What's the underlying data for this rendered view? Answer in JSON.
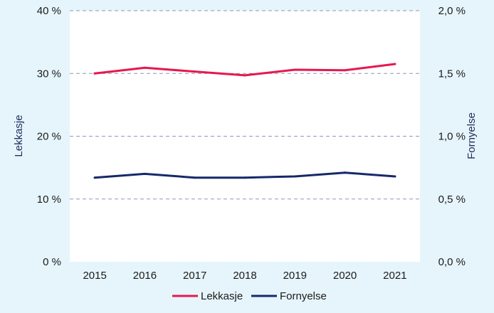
{
  "chart_data": {
    "type": "line",
    "categories": [
      "2015",
      "2016",
      "2017",
      "2018",
      "2019",
      "2020",
      "2021"
    ],
    "series": [
      {
        "name": "Lekkasje",
        "axis": "left",
        "color": "#e8174e",
        "values": [
          30.0,
          30.9,
          30.3,
          29.7,
          30.6,
          30.5,
          31.5
        ]
      },
      {
        "name": "Fornyelse",
        "axis": "right",
        "color": "#15296b",
        "values": [
          0.67,
          0.7,
          0.67,
          0.67,
          0.68,
          0.71,
          0.68
        ]
      }
    ],
    "y_left": {
      "label": "Lekkasje",
      "min": 0,
      "max": 40,
      "ticks": [
        "0 %",
        "10 %",
        "20 %",
        "30 %",
        "40 %"
      ]
    },
    "y_right": {
      "label": "Fornyelse",
      "min": 0,
      "max": 2.0,
      "ticks": [
        "0,0 %",
        "0,5 %",
        "1,0 %",
        "1,5 %",
        "2,0 %"
      ]
    },
    "grid": true,
    "legend_position": "bottom"
  }
}
